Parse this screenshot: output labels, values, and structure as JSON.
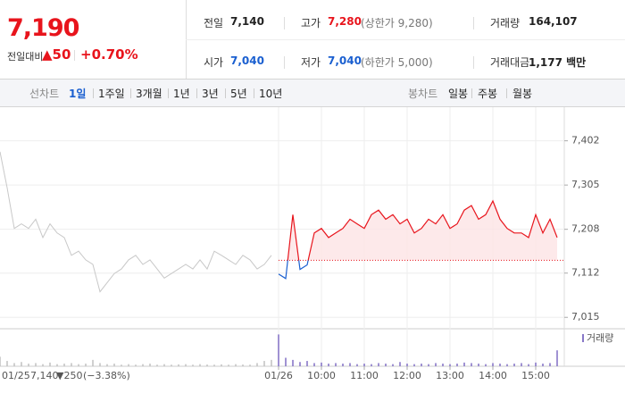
{
  "header": {
    "price": "7,190",
    "change_label": "전일대비",
    "change": "▲50",
    "rate": "+0.70%"
  },
  "stats": [
    {
      "label": "전일",
      "value": "7,140"
    },
    {
      "label": "고가",
      "value": "7,280",
      "note": "(상한가 9,280)"
    },
    {
      "label": "거래량",
      "value": "164,107"
    },
    {
      "label": "시가",
      "value": "7,040"
    },
    {
      "label": "저가",
      "value": "7,040",
      "note": "(하한가 5,000)"
    },
    {
      "label": "거래대금",
      "value": "1,177 백만"
    }
  ],
  "tabs": {
    "line_label": "선차트",
    "line_periods": [
      "1일",
      "1주일",
      "3개월",
      "1년",
      "3년",
      "5년",
      "10년"
    ],
    "selected": "1일",
    "candle_label": "봉차트",
    "candle_periods": [
      "일봉",
      "주봉",
      "월봉"
    ]
  },
  "chart_data": {
    "type": "line",
    "xlim": [
      0,
      790
    ],
    "ylim": [
      6990,
      7460
    ],
    "yticks": [
      {
        "value": 7402,
        "label": "7,402"
      },
      {
        "value": 7305,
        "label": "7,305"
      },
      {
        "value": 7208,
        "label": "7,208"
      },
      {
        "value": 7112,
        "label": "7,112"
      },
      {
        "value": 7015,
        "label": "7,015"
      }
    ],
    "xticks": [
      {
        "value": 390,
        "label": "01/26"
      },
      {
        "value": 450,
        "label": "10:00"
      },
      {
        "value": 510,
        "label": "11:00"
      },
      {
        "value": 570,
        "label": "12:00"
      },
      {
        "value": 630,
        "label": "13:00"
      },
      {
        "value": 690,
        "label": "14:00"
      },
      {
        "value": 750,
        "label": "15:00"
      }
    ],
    "grid": true,
    "baseline": 7140,
    "series": [
      {
        "color": "#c8c8c8",
        "x": [
          0,
          10,
          20,
          30,
          40,
          50,
          60,
          70,
          80,
          90,
          100,
          110,
          120,
          130,
          140,
          150,
          160,
          170,
          180,
          190,
          200,
          210,
          220,
          230,
          240,
          250,
          260,
          270,
          280,
          290,
          300,
          310,
          320,
          330,
          340,
          350,
          360,
          370,
          380
        ],
        "values": [
          7378,
          7299,
          7210,
          7220,
          7210,
          7230,
          7190,
          7220,
          7200,
          7190,
          7151,
          7160,
          7141,
          7131,
          7071,
          7091,
          7111,
          7121,
          7141,
          7151,
          7131,
          7141,
          7121,
          7101,
          7111,
          7121,
          7131,
          7121,
          7141,
          7121,
          7160,
          7151,
          7141,
          7131,
          7151,
          7141,
          7121,
          7131,
          7151
        ]
      },
      {
        "color": "#e8141c",
        "down_color": "#1a5fd0",
        "fill": "#fde3e5",
        "x": [
          390,
          400,
          410,
          420,
          430,
          440,
          450,
          460,
          470,
          480,
          490,
          500,
          510,
          520,
          530,
          540,
          550,
          560,
          570,
          580,
          590,
          600,
          610,
          620,
          630,
          640,
          650,
          660,
          670,
          680,
          690,
          700,
          710,
          720,
          730,
          740,
          750,
          760,
          770,
          780
        ],
        "values": [
          7110,
          7100,
          7240,
          7120,
          7130,
          7200,
          7210,
          7190,
          7200,
          7210,
          7230,
          7220,
          7210,
          7240,
          7250,
          7230,
          7240,
          7220,
          7230,
          7200,
          7210,
          7230,
          7220,
          7240,
          7210,
          7220,
          7250,
          7260,
          7230,
          7240,
          7270,
          7230,
          7210,
          7200,
          7200,
          7190,
          7240,
          7200,
          7230,
          7190
        ]
      }
    ],
    "volume": {
      "name": "거래량",
      "ylim": [
        0,
        32000
      ],
      "series": [
        {
          "color": "#c4c4c4",
          "values": [
            9000,
            5000,
            3000,
            4000,
            2500,
            3000,
            2000,
            3500,
            2000,
            2500,
            3000,
            2000,
            2500,
            6000,
            3000,
            2000,
            2500,
            1500,
            2000,
            1500,
            2000,
            2500,
            1500,
            2000,
            1500,
            1800,
            2000,
            1500,
            2000,
            1600,
            1500,
            1800,
            1500,
            2000,
            1600,
            1500,
            3000,
            5000,
            6000
          ]
        },
        {
          "color": "#8878c8",
          "values": [
            30000,
            8000,
            6000,
            4000,
            5000,
            3000,
            3500,
            2500,
            3000,
            2500,
            3000,
            2000,
            2500,
            2000,
            3000,
            2500,
            2000,
            4000,
            2500,
            2000,
            2500,
            2000,
            3000,
            2500,
            2000,
            2500,
            3500,
            3000,
            2500,
            2000,
            3000,
            2500,
            2000,
            2500,
            3000,
            2000,
            3500,
            2500,
            3000,
            15000
          ]
        }
      ]
    },
    "legend": {
      "date": "01/25",
      "close": "7,140",
      "change": "▼250",
      "rate": "(−3.38%)"
    }
  }
}
